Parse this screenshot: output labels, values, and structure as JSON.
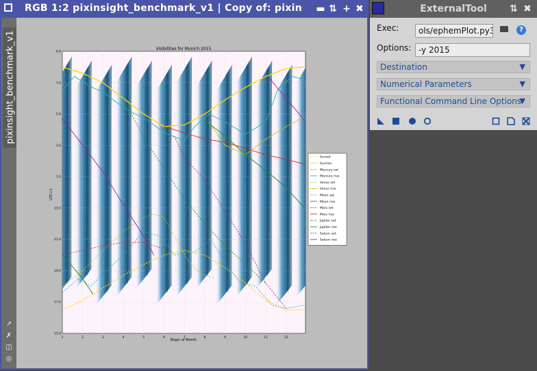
{
  "image_window": {
    "title": "RGB 1:2 pixinsight_benchmark_v1 | Copy of: pixinsig…",
    "view_tab_label": "pixinsight_benchmark_v1"
  },
  "plot": {
    "title": "Visibilities for Munich 2015",
    "xlabel": "Begin of Month",
    "ylabel": "UTC+1",
    "x_ticks": [
      "1",
      "2",
      "3",
      "4",
      "5",
      "6",
      "7",
      "8",
      "9",
      "10",
      "11",
      "12"
    ],
    "y_ticks": [
      "15.0",
      "17.0",
      "19.0",
      "21.0",
      "23.0",
      "1.0",
      "3.0",
      "5.0",
      "7.0",
      "9.0"
    ]
  },
  "chart_data": {
    "type": "line",
    "title": "Visibilities for Munich 2015",
    "xlabel": "Begin of Month",
    "ylabel": "UTC+1",
    "x_ticks": [
      1,
      2,
      3,
      4,
      5,
      6,
      7,
      8,
      9,
      10,
      11,
      12
    ],
    "y_ticks": [
      "15.0",
      "17.0",
      "19.0",
      "21.0",
      "23.0",
      "1.0",
      "3.0",
      "5.0",
      "7.0",
      "9.0"
    ],
    "legend_position": "right",
    "legend": [
      {
        "name": "Sunset",
        "color": "#ffd700",
        "dash": true
      },
      {
        "name": "Sunrise",
        "color": "#ffd700",
        "dash": false
      },
      {
        "name": "Mercury set",
        "color": "#20b2aa",
        "dash": true
      },
      {
        "name": "Mercury rise",
        "color": "#20b2aa",
        "dash": false
      },
      {
        "name": "Venus set",
        "color": "#c8c800",
        "dash": true
      },
      {
        "name": "Venus rise",
        "color": "#c8c800",
        "dash": false
      },
      {
        "name": "Moon set",
        "color": "#808080",
        "dash": true
      },
      {
        "name": "Moon rise",
        "color": "#606060",
        "dash": false
      },
      {
        "name": "Mars set",
        "color": "#dd2222",
        "dash": true
      },
      {
        "name": "Mars rise",
        "color": "#dd2222",
        "dash": false
      },
      {
        "name": "Jupiter set",
        "color": "#228b22",
        "dash": true
      },
      {
        "name": "Jupiter rise",
        "color": "#228b22",
        "dash": false
      },
      {
        "name": "Saturn set",
        "color": "#a020a0",
        "dash": true
      },
      {
        "name": "Saturn rise",
        "color": "#a020a0",
        "dash": false
      }
    ],
    "series": [
      {
        "name": "Sunset",
        "points": [
          [
            1,
            16.5
          ],
          [
            2,
            17.1
          ],
          [
            3,
            17.9
          ],
          [
            4,
            18.7
          ],
          [
            5,
            19.4
          ],
          [
            6,
            20.0
          ],
          [
            7,
            20.3
          ],
          [
            8,
            20.0
          ],
          [
            9,
            19.2
          ],
          [
            10,
            18.2
          ],
          [
            11,
            17.1
          ],
          [
            12,
            16.5
          ],
          [
            12.9,
            16.5
          ]
        ]
      },
      {
        "name": "Sunrise",
        "points": [
          [
            1,
            32.0
          ],
          [
            2,
            31.6
          ],
          [
            3,
            31.0
          ],
          [
            4,
            30.0
          ],
          [
            5,
            29.0
          ],
          [
            6,
            28.2
          ],
          [
            7,
            28.3
          ],
          [
            8,
            29.0
          ],
          [
            9,
            29.9
          ],
          [
            10,
            30.7
          ],
          [
            11,
            31.4
          ],
          [
            12,
            31.9
          ],
          [
            12.9,
            32.0
          ]
        ]
      },
      {
        "name": "Mercury set",
        "points": [
          [
            1,
            17.6
          ],
          [
            1.8,
            18.5
          ],
          [
            2.4,
            18.0
          ],
          [
            3,
            18.8
          ],
          [
            4,
            20.0
          ],
          [
            5,
            21.5
          ],
          [
            5.8,
            21.2
          ],
          [
            6.5,
            20.0
          ],
          [
            7.5,
            20.2
          ],
          [
            8.3,
            21.0
          ],
          [
            9,
            19.5
          ],
          [
            9.7,
            18.3
          ],
          [
            10.5,
            18.0
          ],
          [
            11.3,
            16.8
          ],
          [
            12,
            16.6
          ],
          [
            12.9,
            16.8
          ]
        ]
      },
      {
        "name": "Mercury rise",
        "points": [
          [
            1,
            30.5
          ],
          [
            1.6,
            31.4
          ],
          [
            2.3,
            30.8
          ],
          [
            3,
            30.4
          ],
          [
            3.6,
            29.8
          ],
          [
            4.3,
            29.2
          ],
          [
            5.2,
            28.6
          ],
          [
            6,
            27.8
          ],
          [
            7,
            27.3
          ],
          [
            7.5,
            28.2
          ],
          [
            8.2,
            29.0
          ],
          [
            9,
            28.5
          ],
          [
            10,
            27.7
          ],
          [
            11,
            28.5
          ],
          [
            11.6,
            30.6
          ],
          [
            12.3,
            31.4
          ],
          [
            12.9,
            31.2
          ]
        ]
      },
      {
        "name": "Venus set",
        "points": [
          [
            1,
            18.0
          ],
          [
            2,
            19.0
          ],
          [
            3,
            20.3
          ],
          [
            4,
            21.5
          ],
          [
            5,
            22.4
          ],
          [
            5.5,
            22.6
          ],
          [
            6,
            22.4
          ],
          [
            6.6,
            21.0
          ],
          [
            7.2,
            19.6
          ],
          [
            7.8,
            18.8
          ],
          [
            8.5,
            18.5
          ]
        ]
      },
      {
        "name": "Venus rise",
        "points": [
          [
            8.2,
            28.5
          ],
          [
            9,
            27.0
          ],
          [
            10,
            26.4
          ],
          [
            11,
            27.4
          ],
          [
            12,
            28.2
          ],
          [
            12.9,
            28.8
          ]
        ]
      },
      {
        "name": "Mars set",
        "points": [
          [
            1,
            20.0
          ],
          [
            2,
            20.3
          ],
          [
            3,
            20.6
          ],
          [
            4,
            20.8
          ],
          [
            5,
            20.8
          ],
          [
            6,
            20.4
          ]
        ]
      },
      {
        "name": "Mars rise",
        "points": [
          [
            6,
            28.2
          ],
          [
            7,
            27.8
          ],
          [
            8,
            27.4
          ],
          [
            9,
            27.2
          ],
          [
            10,
            26.8
          ],
          [
            11,
            26.4
          ],
          [
            12,
            26.1
          ],
          [
            12.9,
            25.8
          ]
        ]
      },
      {
        "name": "Jupiter set",
        "points": [
          [
            4.0,
            30.0
          ],
          [
            5,
            27.5
          ],
          [
            6,
            25.5
          ],
          [
            7,
            23.6
          ],
          [
            8,
            22.0
          ],
          [
            9,
            20.6
          ],
          [
            10,
            19.4
          ],
          [
            11,
            18.2
          ]
        ]
      },
      {
        "name": "Jupiter rise",
        "points": [
          [
            1,
            20.0
          ],
          [
            2,
            18.5
          ],
          [
            2.5,
            17.5
          ]
        ]
      },
      {
        "name": "Jupiter rise 2",
        "points": [
          [
            8,
            28.6
          ],
          [
            9,
            27.6
          ],
          [
            10,
            26.4
          ],
          [
            11,
            25.4
          ],
          [
            12,
            24.3
          ],
          [
            12.9,
            23.0
          ]
        ]
      },
      {
        "name": "Saturn set",
        "points": [
          [
            6.5,
            27.6
          ],
          [
            7,
            26.2
          ],
          [
            8,
            24.8
          ],
          [
            9,
            22.8
          ],
          [
            10,
            20.7
          ],
          [
            11,
            18.2
          ],
          [
            12,
            16.6
          ]
        ]
      },
      {
        "name": "Saturn rise",
        "points": [
          [
            1,
            28.7
          ],
          [
            2,
            27.0
          ],
          [
            3,
            25.3
          ],
          [
            4,
            23.2
          ],
          [
            5,
            21.2
          ],
          [
            5.5,
            20.0
          ]
        ]
      },
      {
        "name": "Saturn rise 2",
        "points": [
          [
            11.1,
            31.4
          ],
          [
            12,
            30.0
          ],
          [
            12.9,
            28.6
          ]
        ]
      }
    ]
  },
  "external_tool": {
    "title": "ExternalTool",
    "exec_label": "Exec:",
    "exec_value": "ols/ephemPlot.py3",
    "options_label": "Options:",
    "options_value": "-y 2015",
    "sections": [
      {
        "label": "Destination"
      },
      {
        "label": "Numerical Parameters"
      },
      {
        "label": "Functional Command Line Options"
      }
    ]
  },
  "colors": {
    "title_bar_active": "#4a55a8",
    "section_text": "#1d4b9a",
    "moon_band": "#0b5f8e"
  }
}
